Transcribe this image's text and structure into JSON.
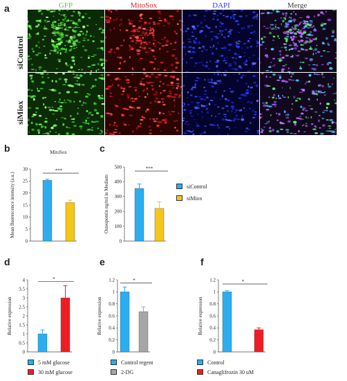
{
  "panel_a": {
    "letter": "a",
    "columns": [
      "GFP",
      "MitoSox",
      "DAPI",
      "Merge"
    ],
    "column_colors": [
      "#3fd13f",
      "#e0202a",
      "#2a3cf0",
      "#444444"
    ],
    "rows": [
      "siControl",
      "siMiox"
    ]
  },
  "panel_b": {
    "letter": "b"
  },
  "panel_c": {
    "letter": "c"
  },
  "panel_d": {
    "letter": "d"
  },
  "panel_e": {
    "letter": "e"
  },
  "panel_f": {
    "letter": "f"
  },
  "legend_bc": {
    "items": [
      "siControl",
      "siMiox"
    ],
    "colors": [
      "#2aaef0",
      "#f5c518"
    ]
  },
  "legend_d": {
    "items": [
      "5 mM glucose",
      "30 mM glucose"
    ],
    "colors": [
      "#2aaef0",
      "#ee1c24"
    ]
  },
  "legend_e": {
    "items": [
      "Control regent",
      "2-DG"
    ],
    "colors": [
      "#2aaef0",
      "#a6a6a6"
    ]
  },
  "legend_f": {
    "items": [
      "Control",
      "Canaglifrozin 30 uM"
    ],
    "colors": [
      "#2aaef0",
      "#ee1c24"
    ]
  },
  "chart_data": [
    {
      "id": "b",
      "type": "bar",
      "title": "MitoSox",
      "categories": [
        "siControl",
        "siMiox"
      ],
      "values": [
        25.3,
        16.0
      ],
      "errors": [
        0.5,
        1.0
      ],
      "colors": [
        "#2aaef0",
        "#f5c518"
      ],
      "ylabel": "Mean fluorescence intensity (a.u.)",
      "ylim": [
        0,
        30
      ],
      "yticks": [
        0,
        5,
        10,
        15,
        20,
        25,
        30
      ],
      "yticklabels": [
        "0",
        "5",
        "10",
        "15",
        "20",
        "25",
        "30"
      ],
      "significance": "***"
    },
    {
      "id": "c",
      "type": "bar",
      "title": "",
      "categories": [
        "siControl",
        "siMiox"
      ],
      "values": [
        355,
        220
      ],
      "errors": [
        30,
        45
      ],
      "colors": [
        "#2aaef0",
        "#f5c518"
      ],
      "ylabel": "Osteopontin ng/ml in Medium",
      "ylim": [
        0,
        500
      ],
      "yticks": [
        0,
        100,
        200,
        300,
        400,
        500
      ],
      "yticklabels": [
        "0",
        "100",
        "200",
        "300",
        "400",
        "500"
      ],
      "significance": "***"
    },
    {
      "id": "d",
      "type": "bar",
      "title": "",
      "categories": [
        "5 mM glucose",
        "30 mM glucose"
      ],
      "values": [
        1.0,
        3.0
      ],
      "errors": [
        0.22,
        0.68
      ],
      "colors": [
        "#2aaef0",
        "#ee1c24"
      ],
      "ylabel": "Relative expression",
      "ylim": [
        0,
        4
      ],
      "yticks": [
        0,
        0.5,
        1,
        1.5,
        2,
        2.5,
        3,
        3.5,
        4
      ],
      "yticklabels": [
        "0",
        "0.5",
        "1",
        "1.5",
        "2",
        "2.5",
        "3",
        "3.5",
        "4"
      ],
      "significance": "*"
    },
    {
      "id": "e",
      "type": "bar",
      "title": "",
      "categories": [
        "Control regent",
        "2-DG"
      ],
      "values": [
        1.0,
        0.67
      ],
      "errors": [
        0.08,
        0.08
      ],
      "colors": [
        "#2aaef0",
        "#a6a6a6"
      ],
      "ylabel": "Relative expression",
      "ylim": [
        0,
        1.2
      ],
      "yticks": [
        0,
        0.2,
        0.4,
        0.6,
        0.8,
        1,
        1.2
      ],
      "yticklabels": [
        "0",
        "0.2",
        "0.4",
        "0.6",
        "0.8",
        "1",
        "1.2"
      ],
      "significance": "*"
    },
    {
      "id": "f",
      "type": "bar",
      "title": "",
      "categories": [
        "Control",
        "Canaglifrozin 30 uM"
      ],
      "values": [
        1.0,
        0.37
      ],
      "errors": [
        0.02,
        0.03
      ],
      "colors": [
        "#2aaef0",
        "#ee1c24"
      ],
      "ylabel": "Relative expression",
      "ylim": [
        0,
        1.2
      ],
      "yticks": [
        0,
        0.2,
        0.4,
        0.6,
        0.8,
        1,
        1.2
      ],
      "yticklabels": [
        "0",
        "0.2",
        "0.4",
        "0.6",
        "0.8",
        "1",
        "1.2"
      ],
      "significance": "*"
    }
  ]
}
